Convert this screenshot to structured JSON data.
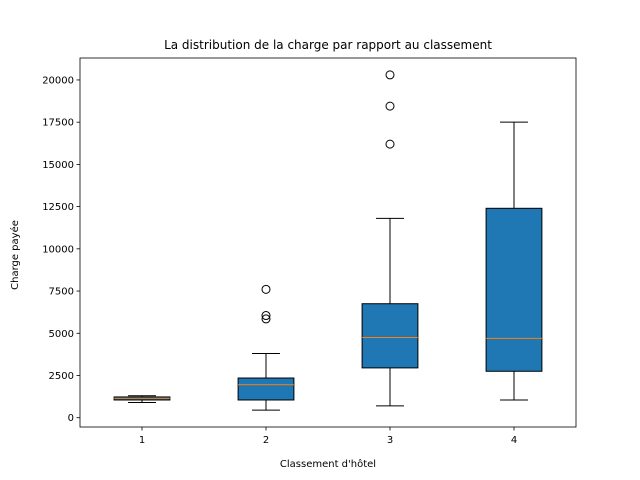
{
  "chart_data": {
    "type": "boxplot",
    "title": "La distribution de la charge par rapport au classement",
    "xlabel": "Classement d'hôtel",
    "ylabel": "Charge payée",
    "ylim": [
      -550,
      21300
    ],
    "xlim": [
      0.5,
      4.5
    ],
    "yticks": [
      0,
      2500,
      5000,
      7500,
      10000,
      12500,
      15000,
      17500,
      20000
    ],
    "categories": [
      "1",
      "2",
      "3",
      "4"
    ],
    "box_color": "#1f77b4",
    "median_color": "#ff7f0e",
    "boxes": [
      {
        "category": "1",
        "whisker_low": 900,
        "q1": 1050,
        "median": 1150,
        "q3": 1230,
        "whisker_high": 1300,
        "outliers": []
      },
      {
        "category": "2",
        "whisker_low": 450,
        "q1": 1050,
        "median": 1950,
        "q3": 2350,
        "whisker_high": 3800,
        "outliers": [
          5850,
          6050,
          7600
        ]
      },
      {
        "category": "3",
        "whisker_low": 700,
        "q1": 2950,
        "median": 4750,
        "q3": 6750,
        "whisker_high": 11800,
        "outliers": [
          16200,
          18450,
          20300
        ]
      },
      {
        "category": "4",
        "whisker_low": 1050,
        "q1": 2750,
        "median": 4700,
        "q3": 12400,
        "whisker_high": 17500,
        "outliers": []
      }
    ],
    "grid": false,
    "legend": "none"
  }
}
